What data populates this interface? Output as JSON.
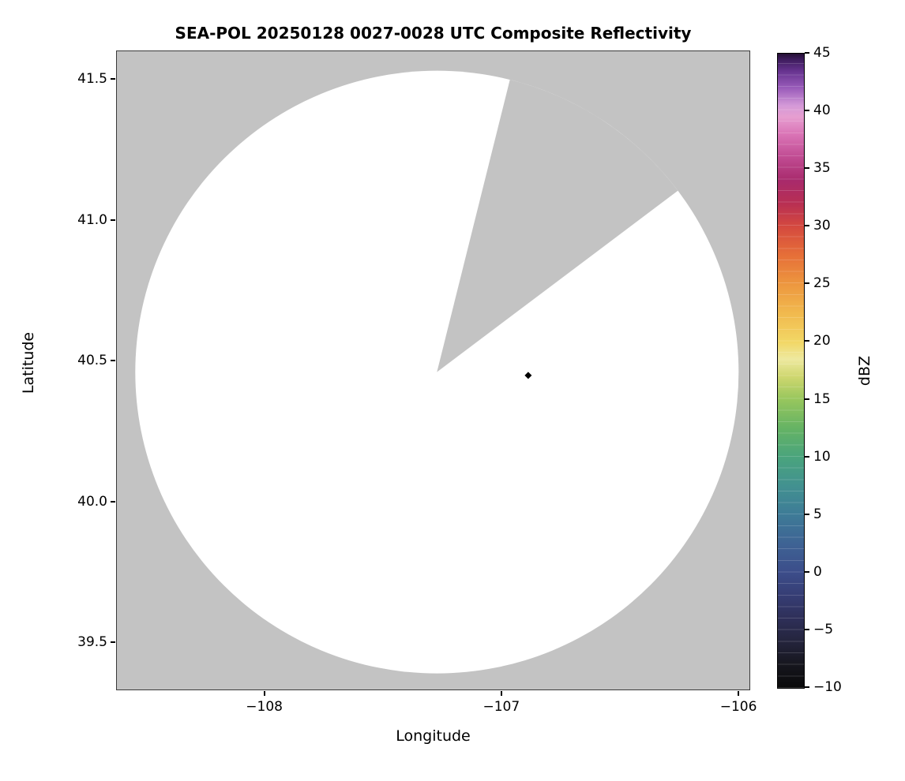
{
  "chart_data": {
    "type": "heatmap",
    "subtype": "radar-ppi-composite",
    "title": "SEA-POL 20250128 0027-0028 UTC Composite Reflectivity",
    "xlabel": "Longitude",
    "ylabel": "Latitude",
    "xlim": [
      -108.625,
      -105.957
    ],
    "ylim": [
      39.335,
      41.601
    ],
    "xticks": [
      -108,
      -107,
      -106
    ],
    "xtick_labels": [
      "−108",
      "−107",
      "−106"
    ],
    "yticks": [
      39.5,
      40.0,
      40.5,
      41.0,
      41.5
    ],
    "ytick_labels": [
      "39.5",
      "40.0",
      "40.5",
      "41.0",
      "41.5"
    ],
    "grid": false,
    "colors": {
      "no_data_mask": "#c3c3c3",
      "no_echo": "#ffffff",
      "marker": "#000000"
    },
    "coverage": {
      "center_lon": -107.275,
      "center_lat": 40.462,
      "radius_lat_deg": 1.07,
      "missing_sector_az_deg": [
        14,
        53
      ]
    },
    "marker": {
      "lon": -106.89,
      "lat": 40.45,
      "shape": "diamond"
    },
    "colorbar": {
      "label": "dBZ",
      "min": -10,
      "max": 45,
      "ticks": [
        45,
        40,
        35,
        30,
        25,
        20,
        15,
        10,
        5,
        0,
        -5,
        -10
      ],
      "tick_labels": [
        "45",
        "40",
        "35",
        "30",
        "25",
        "20",
        "15",
        "10",
        "5",
        "0",
        "−5",
        "−10"
      ],
      "stops": [
        {
          "v": -10,
          "c": "#0a0a0a"
        },
        {
          "v": -8,
          "c": "#16161e"
        },
        {
          "v": -6,
          "c": "#24243c"
        },
        {
          "v": -4,
          "c": "#2e2f58"
        },
        {
          "v": -2,
          "c": "#363d74"
        },
        {
          "v": 0,
          "c": "#3c4d8a"
        },
        {
          "v": 2.5,
          "c": "#3e6394"
        },
        {
          "v": 5,
          "c": "#3e7b97"
        },
        {
          "v": 7.5,
          "c": "#429190"
        },
        {
          "v": 10,
          "c": "#4aa47d"
        },
        {
          "v": 12.5,
          "c": "#65b364"
        },
        {
          "v": 15,
          "c": "#97c65d"
        },
        {
          "v": 17,
          "c": "#cfd76f"
        },
        {
          "v": 18.5,
          "c": "#eee9a0"
        },
        {
          "v": 20,
          "c": "#f2d765"
        },
        {
          "v": 22.5,
          "c": "#f1b94e"
        },
        {
          "v": 25,
          "c": "#ed973f"
        },
        {
          "v": 27.5,
          "c": "#e66f38"
        },
        {
          "v": 30,
          "c": "#d4493f"
        },
        {
          "v": 32,
          "c": "#b82f53"
        },
        {
          "v": 34,
          "c": "#a82a6c"
        },
        {
          "v": 36,
          "c": "#c04b92"
        },
        {
          "v": 38,
          "c": "#da74b6"
        },
        {
          "v": 39.5,
          "c": "#e69ed0"
        },
        {
          "v": 40.5,
          "c": "#d49ad8"
        },
        {
          "v": 42,
          "c": "#9a5cba"
        },
        {
          "v": 43.5,
          "c": "#66338f"
        },
        {
          "v": 44.5,
          "c": "#3d1c5c"
        },
        {
          "v": 45,
          "c": "#241033"
        }
      ]
    }
  }
}
